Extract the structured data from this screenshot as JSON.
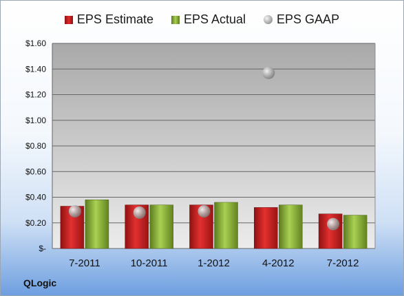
{
  "company": "QLogic",
  "legend": {
    "estimate": "EPS Estimate",
    "actual": "EPS Actual",
    "gaap": "EPS GAAP"
  },
  "colors": {
    "estimate": "#c81e1e",
    "actual": "#8fba3c",
    "gaap": "#b4b4b4"
  },
  "chart_data": {
    "type": "bar",
    "categories": [
      "7-2011",
      "10-2011",
      "1-2012",
      "4-2012",
      "7-2012"
    ],
    "series": [
      {
        "name": "EPS Estimate",
        "type": "bar",
        "values": [
          0.33,
          0.34,
          0.34,
          0.32,
          0.27
        ]
      },
      {
        "name": "EPS Actual",
        "type": "bar",
        "values": [
          0.38,
          0.34,
          0.36,
          0.34,
          0.26
        ]
      },
      {
        "name": "EPS GAAP",
        "type": "scatter",
        "values": [
          0.29,
          0.28,
          0.29,
          1.37,
          0.19
        ]
      }
    ],
    "ylim": [
      0,
      1.6
    ],
    "yticks": [
      0,
      0.2,
      0.4,
      0.6,
      0.8,
      1.0,
      1.2,
      1.4,
      1.6
    ],
    "ytick_labels": [
      "$-",
      "$0.20",
      "$0.40",
      "$0.60",
      "$0.80",
      "$1.00",
      "$1.20",
      "$1.40",
      "$1.60"
    ],
    "grid": true,
    "legend_position": "top"
  }
}
